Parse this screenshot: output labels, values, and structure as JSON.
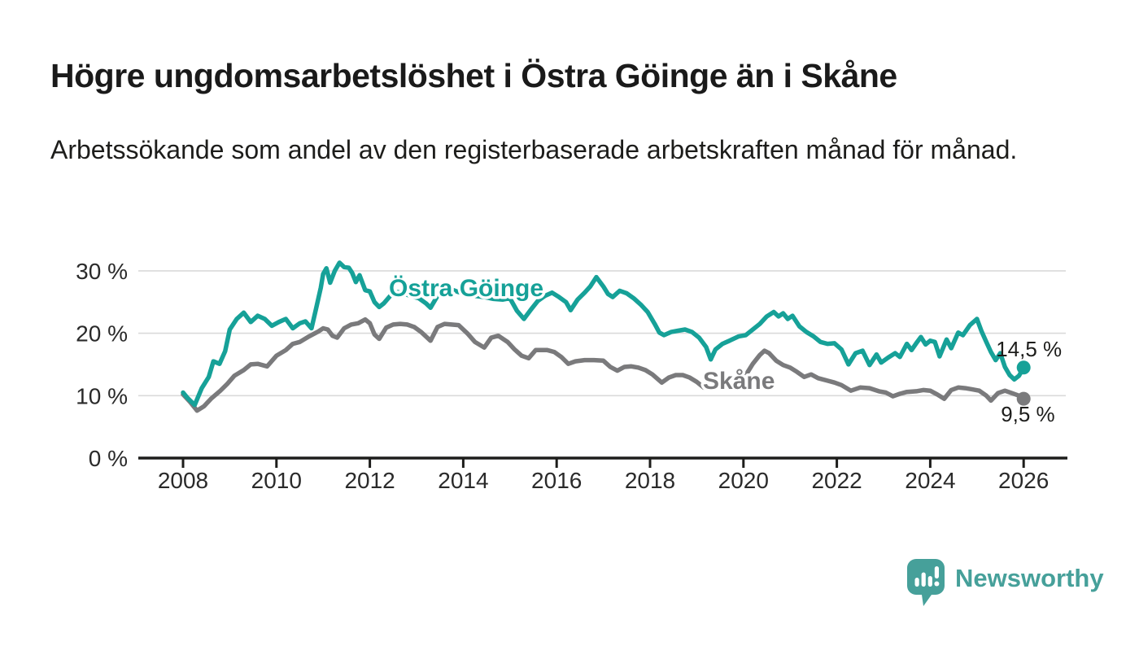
{
  "header": {
    "title": "Högre ungdomsarbetslöshet i Östra Göinge än i Skåne",
    "subtitle": "Arbetssökande som andel av den registerbaserade arbetskraften månad för månad."
  },
  "footer": {
    "brand": "Newsworthy",
    "logo_icon": "speech-bubble-bar-chart-exclamation-icon",
    "brand_color": "#46a09a"
  },
  "colors": {
    "ostra_goinge": "#16a198",
    "skane": "#7a7a7c",
    "axis": "#1d1d1b",
    "grid": "#dadada",
    "tick_text": "#2a2a2a",
    "end_label_text": "#1d1d1b"
  },
  "chart_data": {
    "type": "line",
    "title": "Högre ungdomsarbetslöshet i Östra Göinge än i Skåne",
    "subtitle": "Arbetssökande som andel av den registerbaserade arbetskraften månad för månad.",
    "unit": "%",
    "grid": "horizontal-only",
    "legend_position": "inline-labels-on-lines",
    "xlim": [
      2007.05,
      2026.95
    ],
    "ylim": [
      0,
      33
    ],
    "x_ticks": [
      2008,
      2010,
      2012,
      2014,
      2016,
      2018,
      2020,
      2022,
      2024,
      2026
    ],
    "x_tick_labels": [
      "2008",
      "2010",
      "2012",
      "2014",
      "2016",
      "2018",
      "2020",
      "2022",
      "2024",
      "2026"
    ],
    "y_ticks": [
      0,
      10,
      20,
      30
    ],
    "y_tick_labels": [
      "0 %",
      "10 %",
      "20 %",
      "30 %"
    ],
    "series": [
      {
        "name": "Skåne",
        "color": "#7a7a7c",
        "end_value": 9.5,
        "end_label": "9,5 %",
        "points": [
          [
            2008.0,
            10.2
          ],
          [
            2008.15,
            9.0
          ],
          [
            2008.3,
            7.6
          ],
          [
            2008.45,
            8.3
          ],
          [
            2008.6,
            9.5
          ],
          [
            2008.8,
            10.8
          ],
          [
            2008.95,
            11.9
          ],
          [
            2009.1,
            13.2
          ],
          [
            2009.3,
            14.1
          ],
          [
            2009.45,
            15.0
          ],
          [
            2009.6,
            15.1
          ],
          [
            2009.8,
            14.7
          ],
          [
            2010.0,
            16.4
          ],
          [
            2010.2,
            17.3
          ],
          [
            2010.35,
            18.3
          ],
          [
            2010.5,
            18.6
          ],
          [
            2010.7,
            19.5
          ],
          [
            2010.9,
            20.3
          ],
          [
            2011.0,
            20.8
          ],
          [
            2011.1,
            20.6
          ],
          [
            2011.2,
            19.6
          ],
          [
            2011.3,
            19.3
          ],
          [
            2011.45,
            20.8
          ],
          [
            2011.6,
            21.4
          ],
          [
            2011.75,
            21.6
          ],
          [
            2011.9,
            22.2
          ],
          [
            2012.0,
            21.6
          ],
          [
            2012.1,
            19.8
          ],
          [
            2012.2,
            19.1
          ],
          [
            2012.35,
            20.9
          ],
          [
            2012.5,
            21.4
          ],
          [
            2012.65,
            21.5
          ],
          [
            2012.8,
            21.4
          ],
          [
            2012.95,
            21.0
          ],
          [
            2013.1,
            20.2
          ],
          [
            2013.3,
            18.8
          ],
          [
            2013.45,
            21.0
          ],
          [
            2013.6,
            21.5
          ],
          [
            2013.75,
            21.4
          ],
          [
            2013.9,
            21.3
          ],
          [
            2014.1,
            19.9
          ],
          [
            2014.25,
            18.6
          ],
          [
            2014.45,
            17.7
          ],
          [
            2014.6,
            19.3
          ],
          [
            2014.75,
            19.6
          ],
          [
            2014.95,
            18.6
          ],
          [
            2015.1,
            17.4
          ],
          [
            2015.25,
            16.4
          ],
          [
            2015.4,
            16.0
          ],
          [
            2015.55,
            17.3
          ],
          [
            2015.8,
            17.3
          ],
          [
            2015.95,
            17.0
          ],
          [
            2016.1,
            16.2
          ],
          [
            2016.25,
            15.1
          ],
          [
            2016.4,
            15.5
          ],
          [
            2016.6,
            15.7
          ],
          [
            2016.8,
            15.7
          ],
          [
            2017.0,
            15.6
          ],
          [
            2017.15,
            14.6
          ],
          [
            2017.3,
            14.0
          ],
          [
            2017.45,
            14.6
          ],
          [
            2017.6,
            14.7
          ],
          [
            2017.75,
            14.5
          ],
          [
            2017.9,
            14.1
          ],
          [
            2018.05,
            13.4
          ],
          [
            2018.25,
            12.1
          ],
          [
            2018.4,
            12.9
          ],
          [
            2018.55,
            13.3
          ],
          [
            2018.7,
            13.3
          ],
          [
            2018.85,
            12.9
          ],
          [
            2019.0,
            12.2
          ],
          [
            2019.15,
            11.3
          ],
          [
            2019.3,
            11.0
          ],
          [
            2019.5,
            11.6
          ],
          [
            2019.7,
            12.3
          ],
          [
            2019.9,
            12.8
          ],
          [
            2020.05,
            13.3
          ],
          [
            2020.2,
            15.1
          ],
          [
            2020.35,
            16.5
          ],
          [
            2020.45,
            17.2
          ],
          [
            2020.55,
            16.8
          ],
          [
            2020.7,
            15.6
          ],
          [
            2020.85,
            14.9
          ],
          [
            2021.0,
            14.5
          ],
          [
            2021.15,
            13.8
          ],
          [
            2021.3,
            13.0
          ],
          [
            2021.45,
            13.4
          ],
          [
            2021.6,
            12.8
          ],
          [
            2021.8,
            12.4
          ],
          [
            2021.95,
            12.1
          ],
          [
            2022.1,
            11.7
          ],
          [
            2022.3,
            10.8
          ],
          [
            2022.5,
            11.3
          ],
          [
            2022.7,
            11.2
          ],
          [
            2022.9,
            10.7
          ],
          [
            2023.05,
            10.5
          ],
          [
            2023.2,
            9.9
          ],
          [
            2023.35,
            10.3
          ],
          [
            2023.5,
            10.6
          ],
          [
            2023.7,
            10.7
          ],
          [
            2023.85,
            10.9
          ],
          [
            2024.0,
            10.8
          ],
          [
            2024.15,
            10.2
          ],
          [
            2024.3,
            9.5
          ],
          [
            2024.45,
            10.9
          ],
          [
            2024.6,
            11.3
          ],
          [
            2024.75,
            11.2
          ],
          [
            2024.9,
            11.0
          ],
          [
            2025.05,
            10.8
          ],
          [
            2025.2,
            10.0
          ],
          [
            2025.3,
            9.2
          ],
          [
            2025.45,
            10.4
          ],
          [
            2025.6,
            10.8
          ],
          [
            2025.75,
            10.4
          ],
          [
            2025.9,
            10.0
          ],
          [
            2026.0,
            9.5
          ]
        ]
      },
      {
        "name": "Östra Göinge",
        "color": "#16a198",
        "end_value": 14.5,
        "end_label": "14,5 %",
        "points": [
          [
            2008.0,
            10.5
          ],
          [
            2008.1,
            9.6
          ],
          [
            2008.25,
            8.5
          ],
          [
            2008.4,
            11.2
          ],
          [
            2008.55,
            13.0
          ],
          [
            2008.65,
            15.5
          ],
          [
            2008.78,
            15.1
          ],
          [
            2008.9,
            17.1
          ],
          [
            2009.0,
            20.6
          ],
          [
            2009.15,
            22.3
          ],
          [
            2009.3,
            23.3
          ],
          [
            2009.45,
            21.8
          ],
          [
            2009.6,
            22.8
          ],
          [
            2009.75,
            22.3
          ],
          [
            2009.9,
            21.2
          ],
          [
            2010.05,
            21.8
          ],
          [
            2010.2,
            22.3
          ],
          [
            2010.35,
            20.8
          ],
          [
            2010.5,
            21.6
          ],
          [
            2010.62,
            21.9
          ],
          [
            2010.75,
            20.8
          ],
          [
            2010.85,
            24.0
          ],
          [
            2010.95,
            27.3
          ],
          [
            2011.0,
            29.5
          ],
          [
            2011.07,
            30.4
          ],
          [
            2011.15,
            28.1
          ],
          [
            2011.25,
            30.0
          ],
          [
            2011.35,
            31.3
          ],
          [
            2011.45,
            30.6
          ],
          [
            2011.55,
            30.5
          ],
          [
            2011.62,
            29.7
          ],
          [
            2011.7,
            28.2
          ],
          [
            2011.78,
            29.3
          ],
          [
            2011.9,
            26.9
          ],
          [
            2012.0,
            26.7
          ],
          [
            2012.1,
            25.0
          ],
          [
            2012.2,
            24.2
          ],
          [
            2012.3,
            24.8
          ],
          [
            2012.45,
            26.1
          ],
          [
            2012.6,
            26.6
          ],
          [
            2012.75,
            26.3
          ],
          [
            2012.9,
            25.9
          ],
          [
            2013.05,
            25.6
          ],
          [
            2013.2,
            24.8
          ],
          [
            2013.3,
            24.1
          ],
          [
            2013.45,
            26.0
          ],
          [
            2013.6,
            26.6
          ],
          [
            2013.75,
            27.0
          ],
          [
            2013.9,
            26.6
          ],
          [
            2014.05,
            26.3
          ],
          [
            2014.25,
            26.0
          ],
          [
            2014.45,
            25.8
          ],
          [
            2014.65,
            25.5
          ],
          [
            2014.85,
            25.4
          ],
          [
            2015.0,
            25.6
          ],
          [
            2015.15,
            23.6
          ],
          [
            2015.3,
            22.3
          ],
          [
            2015.45,
            23.8
          ],
          [
            2015.6,
            25.2
          ],
          [
            2015.75,
            26.0
          ],
          [
            2015.9,
            26.5
          ],
          [
            2016.05,
            25.8
          ],
          [
            2016.2,
            25.0
          ],
          [
            2016.3,
            23.7
          ],
          [
            2016.45,
            25.4
          ],
          [
            2016.6,
            26.5
          ],
          [
            2016.72,
            27.5
          ],
          [
            2016.85,
            29.0
          ],
          [
            2017.0,
            27.5
          ],
          [
            2017.1,
            26.3
          ],
          [
            2017.2,
            25.8
          ],
          [
            2017.35,
            26.8
          ],
          [
            2017.5,
            26.4
          ],
          [
            2017.65,
            25.6
          ],
          [
            2017.8,
            24.6
          ],
          [
            2017.95,
            23.4
          ],
          [
            2018.1,
            21.5
          ],
          [
            2018.2,
            20.1
          ],
          [
            2018.3,
            19.7
          ],
          [
            2018.45,
            20.2
          ],
          [
            2018.6,
            20.4
          ],
          [
            2018.75,
            20.6
          ],
          [
            2018.9,
            20.2
          ],
          [
            2019.05,
            19.3
          ],
          [
            2019.2,
            17.8
          ],
          [
            2019.3,
            15.8
          ],
          [
            2019.4,
            17.4
          ],
          [
            2019.55,
            18.3
          ],
          [
            2019.7,
            18.8
          ],
          [
            2019.9,
            19.5
          ],
          [
            2020.05,
            19.7
          ],
          [
            2020.2,
            20.6
          ],
          [
            2020.35,
            21.5
          ],
          [
            2020.5,
            22.7
          ],
          [
            2020.65,
            23.4
          ],
          [
            2020.75,
            22.7
          ],
          [
            2020.85,
            23.2
          ],
          [
            2020.95,
            22.3
          ],
          [
            2021.05,
            22.8
          ],
          [
            2021.2,
            21.1
          ],
          [
            2021.35,
            20.2
          ],
          [
            2021.5,
            19.5
          ],
          [
            2021.65,
            18.6
          ],
          [
            2021.8,
            18.3
          ],
          [
            2021.95,
            18.4
          ],
          [
            2022.1,
            17.4
          ],
          [
            2022.25,
            15.0
          ],
          [
            2022.4,
            16.8
          ],
          [
            2022.55,
            17.2
          ],
          [
            2022.7,
            14.9
          ],
          [
            2022.85,
            16.6
          ],
          [
            2022.95,
            15.3
          ],
          [
            2023.1,
            16.1
          ],
          [
            2023.25,
            16.8
          ],
          [
            2023.35,
            16.2
          ],
          [
            2023.5,
            18.3
          ],
          [
            2023.6,
            17.3
          ],
          [
            2023.7,
            18.4
          ],
          [
            2023.8,
            19.4
          ],
          [
            2023.9,
            18.2
          ],
          [
            2024.0,
            18.8
          ],
          [
            2024.1,
            18.6
          ],
          [
            2024.2,
            16.3
          ],
          [
            2024.35,
            19.0
          ],
          [
            2024.45,
            17.6
          ],
          [
            2024.6,
            20.1
          ],
          [
            2024.7,
            19.7
          ],
          [
            2024.85,
            21.3
          ],
          [
            2025.0,
            22.3
          ],
          [
            2025.1,
            20.3
          ],
          [
            2025.2,
            18.6
          ],
          [
            2025.3,
            17.0
          ],
          [
            2025.4,
            15.7
          ],
          [
            2025.5,
            16.8
          ],
          [
            2025.6,
            14.6
          ],
          [
            2025.7,
            13.3
          ],
          [
            2025.8,
            12.6
          ],
          [
            2025.9,
            13.2
          ],
          [
            2026.0,
            14.5
          ]
        ]
      }
    ],
    "inline_labels": [
      {
        "series": "Östra Göinge",
        "x": 478,
        "y": 364
      },
      {
        "series": "Skåne",
        "x": 864,
        "y": 478
      }
    ]
  }
}
